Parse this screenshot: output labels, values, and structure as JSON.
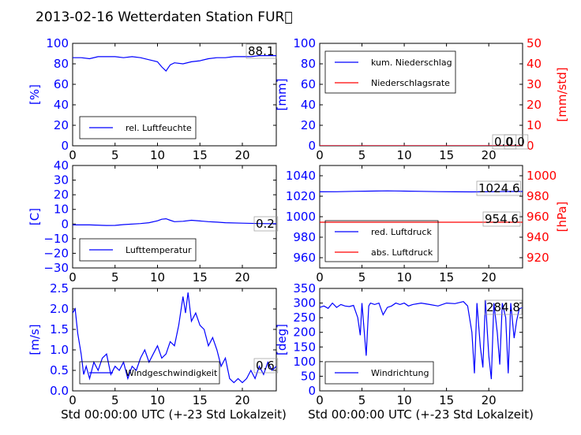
{
  "title": "2013-02-16 Wetterdaten Station FUR\u0000",
  "xlabel": "Std 00:00:00 UTC (+-23 Std Lokalzeit)",
  "colors": {
    "primary": "#0000ff",
    "secondary": "#ff0000",
    "light": "#8080ff",
    "frame": "#000000"
  },
  "chart_data": [
    {
      "type": "line",
      "ylabel": "[%]",
      "xlim": [
        0,
        24
      ],
      "ylim": [
        0,
        100
      ],
      "xticks": [
        "0",
        "5",
        "10",
        "15",
        "20"
      ],
      "yticks": [
        "0",
        "20",
        "40",
        "60",
        "80",
        "100"
      ],
      "annotation": "88.1",
      "legend_position": "lower-left",
      "series": [
        {
          "name": "rel. Luftfeuchte",
          "color": "#0000ff",
          "x": [
            0,
            1,
            2,
            3,
            4,
            5,
            6,
            7,
            8,
            9,
            9.5,
            10,
            10.5,
            11,
            11.5,
            12,
            13,
            14,
            15,
            16,
            17,
            18,
            19,
            20,
            21,
            22,
            23,
            24
          ],
          "y": [
            86,
            86,
            85,
            87,
            87,
            87,
            86,
            87,
            86,
            84,
            83,
            82,
            77,
            73,
            79,
            81,
            80,
            82,
            83,
            85,
            86,
            86,
            87,
            87,
            87,
            88,
            88,
            88
          ]
        }
      ]
    },
    {
      "type": "line",
      "ylabel": "[mm]",
      "ylabel2": "[mm/std]",
      "xlim": [
        0,
        24
      ],
      "ylim": [
        0,
        100
      ],
      "ylim2": [
        0,
        50
      ],
      "xticks": [
        "0",
        "5",
        "10",
        "15",
        "20"
      ],
      "yticks": [
        "0",
        "20",
        "40",
        "60",
        "80",
        "100"
      ],
      "yticks2": [
        "0",
        "10",
        "20",
        "30",
        "40",
        "50"
      ],
      "annotation": "0.0",
      "annotation2": "0.0",
      "legend_position": "upper-left",
      "series": [
        {
          "name": "kum. Niederschlag",
          "color": "#0000ff",
          "x": [
            0,
            24
          ],
          "y": [
            0,
            0
          ]
        },
        {
          "name": "Niederschlagsrate",
          "color": "#ff0000",
          "x": [
            0,
            24
          ],
          "y": [
            0,
            0
          ]
        }
      ]
    },
    {
      "type": "line",
      "ylabel": "[C]",
      "xlim": [
        0,
        24
      ],
      "ylim": [
        -30,
        40
      ],
      "xticks": [
        "0",
        "5",
        "10",
        "15",
        "20"
      ],
      "yticks": [
        "−30",
        "−20",
        "−10",
        "0",
        "10",
        "20",
        "30",
        "40"
      ],
      "annotation": "0.2",
      "legend_position": "lower-left",
      "series": [
        {
          "name": "Lufttemperatur",
          "color": "#0000ff",
          "x": [
            0,
            2,
            4,
            5,
            6,
            8,
            9,
            10,
            10.5,
            11,
            11.5,
            12,
            13,
            14,
            15,
            16,
            17,
            18,
            20,
            22,
            24
          ],
          "y": [
            -0.6,
            -0.6,
            -1.0,
            -0.9,
            -0.4,
            0.3,
            0.9,
            2.2,
            3.3,
            3.6,
            2.6,
            1.6,
            1.9,
            2.6,
            2.1,
            1.6,
            1.3,
            0.9,
            0.6,
            0.3,
            0.2
          ]
        }
      ]
    },
    {
      "type": "line",
      "ylabel2": "[hPa]",
      "xlim": [
        0,
        24
      ],
      "ylim": [
        950,
        1050
      ],
      "ylim2": [
        910,
        1010
      ],
      "xticks": [
        "0",
        "5",
        "10",
        "15",
        "20"
      ],
      "yticks": [
        "960",
        "980",
        "1000",
        "1020",
        "1040"
      ],
      "yticks2": [
        "920",
        "940",
        "960",
        "980",
        "1000"
      ],
      "annotation": "1024.6",
      "annotation2": "954.6",
      "legend_position": "lower-left",
      "series": [
        {
          "name": "red. Luftdruck",
          "color": "#0000ff",
          "x": [
            0,
            2,
            4,
            6,
            8,
            10,
            12,
            14,
            16,
            18,
            20,
            22,
            24
          ],
          "y": [
            1024.3,
            1024.4,
            1024.8,
            1025.0,
            1025.2,
            1025.0,
            1024.8,
            1024.5,
            1024.3,
            1024.2,
            1024.4,
            1024.6,
            1024.6
          ]
        },
        {
          "name": "abs. Luftdruck",
          "color": "#ff0000",
          "axis": "right",
          "x": [
            0,
            24
          ],
          "y": [
            954.6,
            954.6
          ]
        }
      ]
    },
    {
      "type": "line",
      "ylabel": "[m/s]",
      "xlim": [
        0,
        24
      ],
      "ylim": [
        0,
        2.5
      ],
      "xticks": [
        "0",
        "5",
        "10",
        "15",
        "20"
      ],
      "yticks": [
        "0.0",
        "0.5",
        "1.0",
        "1.5",
        "2.0",
        "2.5"
      ],
      "annotation": "0.6",
      "legend_position": "lower-left",
      "series": [
        {
          "name": "Windgeschwindigkeit",
          "color": "#0000ff",
          "x": [
            0,
            0.3,
            0.6,
            1,
            1.3,
            1.6,
            2,
            2.5,
            3,
            3.5,
            4,
            4.5,
            5,
            5.5,
            6,
            6.5,
            7,
            7.5,
            8,
            8.5,
            9,
            9.5,
            10,
            10.5,
            11,
            11.5,
            12,
            12.5,
            13,
            13.3,
            13.6,
            14,
            14.5,
            15,
            15.5,
            16,
            16.5,
            17,
            17.5,
            18,
            18.5,
            19,
            19.5,
            20,
            20.5,
            21,
            21.5,
            22,
            22.5,
            23,
            23.5,
            24
          ],
          "y": [
            1.9,
            2.0,
            1.4,
            0.9,
            0.4,
            0.6,
            0.3,
            0.7,
            0.5,
            0.8,
            0.9,
            0.4,
            0.6,
            0.5,
            0.7,
            0.3,
            0.6,
            0.5,
            0.8,
            1.0,
            0.7,
            0.9,
            1.1,
            0.8,
            0.9,
            1.2,
            1.1,
            1.6,
            2.3,
            1.9,
            2.4,
            1.7,
            1.9,
            1.6,
            1.5,
            1.1,
            1.3,
            1.0,
            0.6,
            0.8,
            0.3,
            0.2,
            0.3,
            0.2,
            0.3,
            0.5,
            0.3,
            0.6,
            0.4,
            0.7,
            0.5,
            0.6
          ]
        }
      ]
    },
    {
      "type": "line",
      "ylabel": "[deg]",
      "xlim": [
        0,
        24
      ],
      "ylim": [
        0,
        350
      ],
      "xticks": [
        "0",
        "5",
        "10",
        "15",
        "20"
      ],
      "yticks": [
        "0",
        "50",
        "100",
        "150",
        "200",
        "250",
        "300",
        "350"
      ],
      "annotation": "284.8",
      "legend_position": "lower-left",
      "series": [
        {
          "name": "Windrichtung",
          "color": "#0000ff",
          "x": [
            0,
            0.5,
            1,
            1.5,
            2,
            2.5,
            3,
            3.5,
            4,
            4.5,
            4.8,
            5,
            5.5,
            5.8,
            6,
            6.5,
            7,
            7.5,
            8,
            8.5,
            9,
            9.5,
            10,
            10.5,
            11,
            12,
            13,
            14,
            15,
            16,
            17,
            17.5,
            18,
            18.3,
            18.6,
            19,
            19.3,
            19.6,
            20,
            20.3,
            20.6,
            21,
            21.3,
            21.6,
            22,
            22.3,
            22.6,
            23,
            23.3,
            23.6,
            24
          ],
          "y": [
            285,
            290,
            282,
            300,
            285,
            295,
            290,
            288,
            292,
            250,
            190,
            300,
            120,
            290,
            300,
            295,
            300,
            260,
            285,
            290,
            300,
            295,
            300,
            290,
            295,
            300,
            295,
            290,
            300,
            298,
            305,
            290,
            200,
            60,
            300,
            150,
            80,
            310,
            120,
            40,
            300,
            200,
            90,
            300,
            250,
            60,
            300,
            180,
            240,
            280,
            285
          ]
        }
      ]
    }
  ]
}
